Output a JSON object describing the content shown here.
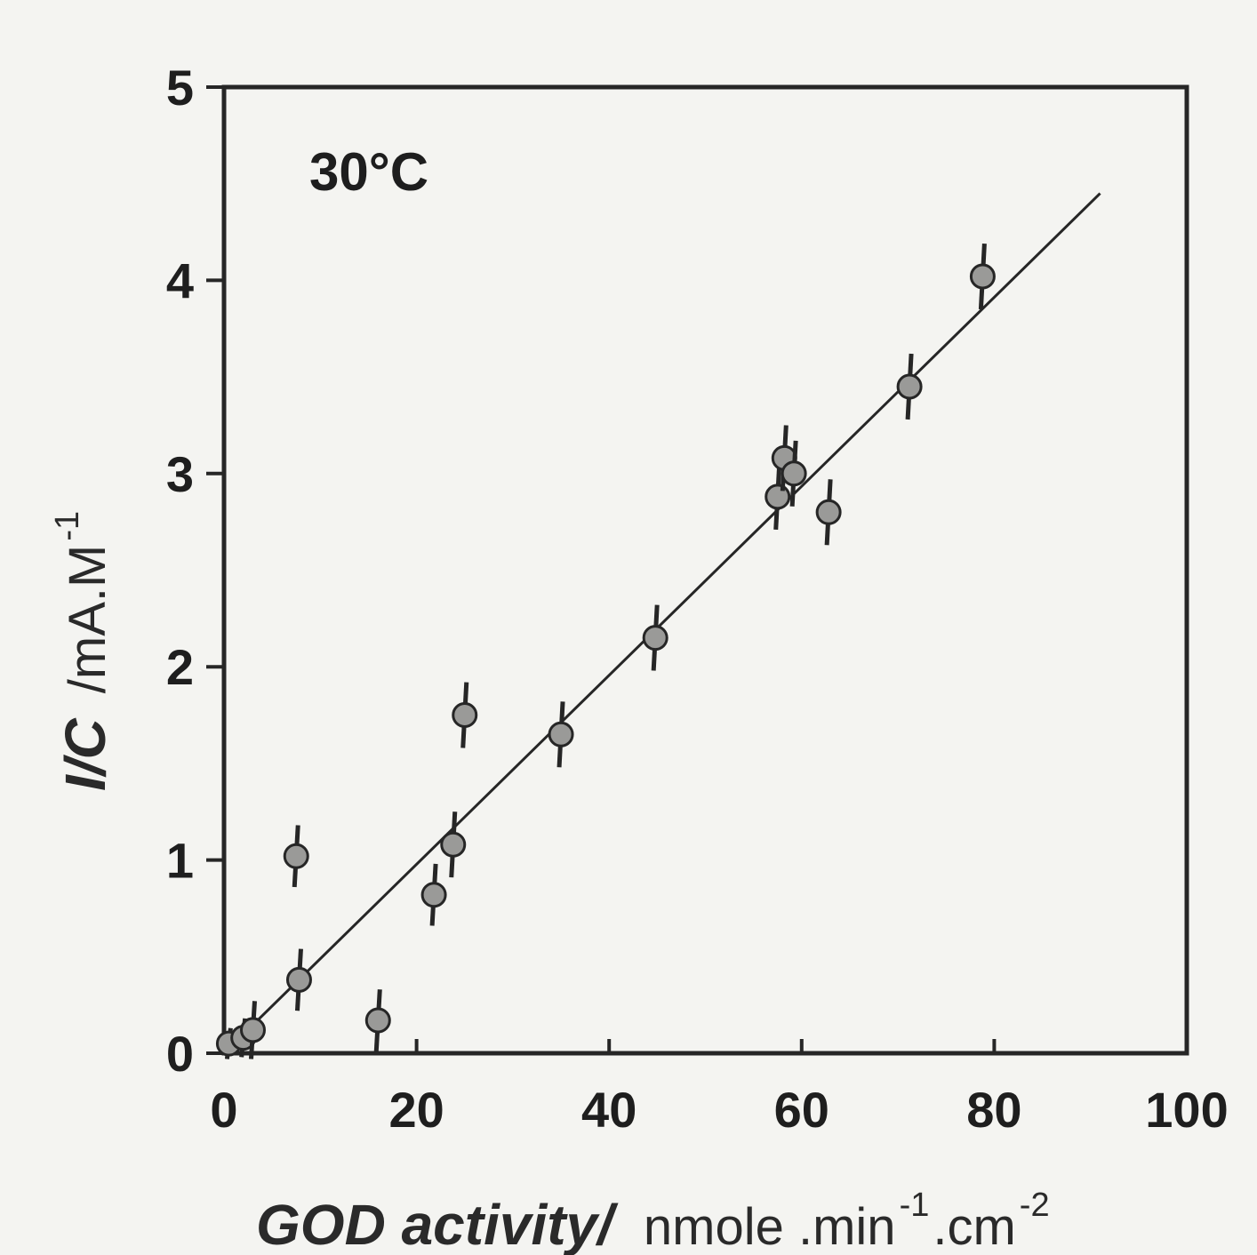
{
  "chart_data": {
    "type": "scatter",
    "annotation": "30°C",
    "xlabel_main": "GOD activity/",
    "xlabel_unit": "nmole .min",
    "xlabel_sup1": "-1",
    "xlabel_mid": ".cm",
    "xlabel_sup2": "-2",
    "ylabel_main": "I/C",
    "ylabel_unit": "/mA.M",
    "ylabel_sup": "-1",
    "xlim": [
      0,
      100
    ],
    "ylim": [
      0,
      5
    ],
    "x_ticks": [
      0,
      20,
      40,
      60,
      80,
      100
    ],
    "x_tick_labels": [
      "0",
      "20",
      "40",
      "60",
      "80",
      "100"
    ],
    "y_ticks": [
      0,
      1,
      2,
      3,
      4,
      5
    ],
    "y_tick_labels": [
      "0",
      "1",
      "2",
      "3",
      "4",
      "5"
    ],
    "grid": false,
    "series": [
      {
        "points": [
          {
            "x": 0.5,
            "y": 0.05,
            "err": 0.08
          },
          {
            "x": 2.0,
            "y": 0.08,
            "err": 0.1
          },
          {
            "x": 3.0,
            "y": 0.12,
            "err": 0.15
          },
          {
            "x": 7.5,
            "y": 1.02,
            "err": 0.16
          },
          {
            "x": 7.8,
            "y": 0.38,
            "err": 0.16
          },
          {
            "x": 16.0,
            "y": 0.17,
            "err": 0.16
          },
          {
            "x": 21.8,
            "y": 0.82,
            "err": 0.16
          },
          {
            "x": 23.8,
            "y": 1.08,
            "err": 0.17
          },
          {
            "x": 25.0,
            "y": 1.75,
            "err": 0.17
          },
          {
            "x": 35.0,
            "y": 1.65,
            "err": 0.17
          },
          {
            "x": 44.8,
            "y": 2.15,
            "err": 0.17
          },
          {
            "x": 57.5,
            "y": 2.88,
            "err": 0.17
          },
          {
            "x": 58.2,
            "y": 3.08,
            "err": 0.17
          },
          {
            "x": 59.2,
            "y": 3.0,
            "err": 0.17
          },
          {
            "x": 62.8,
            "y": 2.8,
            "err": 0.17
          },
          {
            "x": 71.2,
            "y": 3.45,
            "err": 0.17
          },
          {
            "x": 78.8,
            "y": 4.02,
            "err": 0.17
          }
        ]
      }
    ],
    "fit_line": {
      "x": [
        0,
        91
      ],
      "y": [
        0,
        4.45
      ]
    },
    "colors": {
      "background": "#f4f4f1",
      "ink": "#262626",
      "marker_fill": "#9a9a98"
    }
  }
}
